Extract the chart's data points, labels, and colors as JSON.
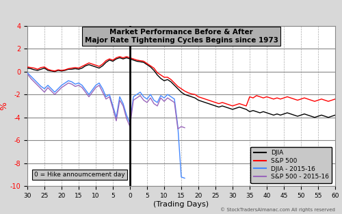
{
  "title_line1": "Market Performance Before & After",
  "title_line2": "Major Rate Tightening Cycles Begins since 1973",
  "xlabel": "(Trading Days)",
  "ylabel": "%",
  "xlim": [
    -30,
    60
  ],
  "ylim": [
    -10,
    4
  ],
  "yticks": [
    -10,
    -8,
    -6,
    -4,
    -2,
    0,
    2,
    4
  ],
  "xticks": [
    -30,
    -25,
    -20,
    -15,
    -10,
    -5,
    0,
    5,
    10,
    15,
    20,
    25,
    30,
    35,
    40,
    45,
    50,
    55,
    60
  ],
  "xticklabels": [
    "30",
    "25",
    "20",
    "15",
    "10",
    "5",
    "0",
    "5",
    "10",
    "15",
    "20",
    "25",
    "30",
    "35",
    "40",
    "45",
    "50",
    "55",
    "60"
  ],
  "vline_x": 0,
  "annotation": "0 = Hike annoumcement day",
  "copyright": "© StockTradersAlmanac.com All rights reserved",
  "background_color": "#d8d8d8",
  "plot_bg_color": "#ffffff",
  "grid_color_h": "#888888",
  "grid_color_v": "#aaaaaa",
  "title_box_color": "#b0b0b0",
  "legend_box_color": "#c8c8c8",
  "annot_box_color": "#c8c8c8",
  "djia_x": [
    -30,
    -29,
    -28,
    -27,
    -26,
    -25,
    -24,
    -23,
    -22,
    -21,
    -20,
    -19,
    -18,
    -17,
    -16,
    -15,
    -14,
    -13,
    -12,
    -11,
    -10,
    -9,
    -8,
    -7,
    -6,
    -5,
    -4,
    -3,
    -2,
    -1,
    0,
    1,
    2,
    3,
    4,
    5,
    6,
    7,
    8,
    9,
    10,
    11,
    12,
    13,
    14,
    15,
    16,
    17,
    18,
    19,
    20,
    21,
    22,
    23,
    24,
    25,
    26,
    27,
    28,
    29,
    30,
    31,
    32,
    33,
    34,
    35,
    36,
    37,
    38,
    39,
    40,
    41,
    42,
    43,
    44,
    45,
    46,
    47,
    48,
    49,
    50,
    51,
    52,
    53,
    54,
    55,
    56,
    57,
    58,
    59,
    60
  ],
  "djia_y": [
    0.3,
    0.25,
    0.15,
    0.1,
    0.2,
    0.3,
    0.1,
    0.05,
    0.0,
    0.1,
    0.05,
    0.1,
    0.2,
    0.2,
    0.25,
    0.2,
    0.3,
    0.5,
    0.6,
    0.5,
    0.4,
    0.3,
    0.5,
    0.8,
    1.0,
    0.9,
    1.1,
    1.2,
    1.1,
    1.2,
    1.1,
    1.0,
    0.9,
    0.85,
    0.8,
    0.6,
    0.4,
    0.1,
    -0.3,
    -0.6,
    -0.8,
    -0.7,
    -0.9,
    -1.2,
    -1.5,
    -1.8,
    -2.0,
    -2.1,
    -2.2,
    -2.3,
    -2.5,
    -2.6,
    -2.7,
    -2.8,
    -2.9,
    -3.0,
    -3.1,
    -3.0,
    -3.1,
    -3.2,
    -3.3,
    -3.2,
    -3.1,
    -3.2,
    -3.3,
    -3.5,
    -3.4,
    -3.5,
    -3.6,
    -3.5,
    -3.6,
    -3.7,
    -3.8,
    -3.7,
    -3.8,
    -3.7,
    -3.6,
    -3.7,
    -3.8,
    -3.9,
    -3.8,
    -3.7,
    -3.8,
    -3.9,
    -4.0,
    -3.9,
    -3.8,
    -3.9,
    -4.0,
    -3.9,
    -3.8
  ],
  "sp500_x": [
    -30,
    -29,
    -28,
    -27,
    -26,
    -25,
    -24,
    -23,
    -22,
    -21,
    -20,
    -19,
    -18,
    -17,
    -16,
    -15,
    -14,
    -13,
    -12,
    -11,
    -10,
    -9,
    -8,
    -7,
    -6,
    -5,
    -4,
    -3,
    -2,
    -1,
    0,
    1,
    2,
    3,
    4,
    5,
    6,
    7,
    8,
    9,
    10,
    11,
    12,
    13,
    14,
    15,
    16,
    17,
    18,
    19,
    20,
    21,
    22,
    23,
    24,
    25,
    26,
    27,
    28,
    29,
    30,
    31,
    32,
    33,
    34,
    35,
    36,
    37,
    38,
    39,
    40,
    41,
    42,
    43,
    44,
    45,
    46,
    47,
    48,
    49,
    50,
    51,
    52,
    53,
    54,
    55,
    56,
    57,
    58,
    59,
    60
  ],
  "sp500_y": [
    0.4,
    0.35,
    0.3,
    0.2,
    0.35,
    0.4,
    0.2,
    0.1,
    0.05,
    0.15,
    0.1,
    0.15,
    0.25,
    0.3,
    0.35,
    0.3,
    0.45,
    0.6,
    0.75,
    0.65,
    0.55,
    0.45,
    0.65,
    0.95,
    1.1,
    1.0,
    1.2,
    1.3,
    1.2,
    1.3,
    1.2,
    1.1,
    1.0,
    0.95,
    0.9,
    0.7,
    0.5,
    0.3,
    -0.1,
    -0.3,
    -0.5,
    -0.5,
    -0.7,
    -1.0,
    -1.3,
    -1.5,
    -1.7,
    -1.85,
    -1.95,
    -2.0,
    -2.2,
    -2.3,
    -2.4,
    -2.5,
    -2.6,
    -2.7,
    -2.8,
    -2.7,
    -2.8,
    -2.9,
    -3.0,
    -2.9,
    -2.8,
    -2.9,
    -3.0,
    -2.2,
    -2.3,
    -2.1,
    -2.2,
    -2.3,
    -2.2,
    -2.3,
    -2.4,
    -2.3,
    -2.4,
    -2.3,
    -2.2,
    -2.3,
    -2.4,
    -2.5,
    -2.4,
    -2.3,
    -2.4,
    -2.5,
    -2.6,
    -2.5,
    -2.4,
    -2.5,
    -2.6,
    -2.5,
    -2.4
  ],
  "djia1516_x": [
    -30,
    -29,
    -28,
    -27,
    -26,
    -25,
    -24,
    -23,
    -22,
    -21,
    -20,
    -19,
    -18,
    -17,
    -16,
    -15,
    -14,
    -13,
    -12,
    -11,
    -10,
    -9,
    -8,
    -7,
    -6,
    -5,
    -4,
    -3,
    -2,
    -1,
    0,
    1,
    2,
    3,
    4,
    5,
    6,
    7,
    8,
    9,
    10,
    11,
    12,
    13,
    14,
    15,
    16
  ],
  "djia1516_y": [
    -0.1,
    -0.4,
    -0.7,
    -1.0,
    -1.3,
    -1.5,
    -1.2,
    -1.5,
    -1.8,
    -1.5,
    -1.2,
    -1.0,
    -0.8,
    -0.9,
    -1.1,
    -1.0,
    -1.2,
    -1.6,
    -2.0,
    -1.6,
    -1.2,
    -1.0,
    -1.5,
    -2.2,
    -2.0,
    -3.0,
    -4.0,
    -2.2,
    -2.8,
    -3.8,
    -4.5,
    -2.2,
    -2.0,
    -1.8,
    -2.2,
    -2.4,
    -2.0,
    -2.5,
    -2.7,
    -2.1,
    -2.3,
    -2.0,
    -2.2,
    -2.4,
    -4.8,
    -9.2,
    -9.3
  ],
  "sp5001516_x": [
    -30,
    -29,
    -28,
    -27,
    -26,
    -25,
    -24,
    -23,
    -22,
    -21,
    -20,
    -19,
    -18,
    -17,
    -16,
    -15,
    -14,
    -13,
    -12,
    -11,
    -10,
    -9,
    -8,
    -7,
    -6,
    -5,
    -4,
    -3,
    -2,
    -1,
    0,
    1,
    2,
    3,
    4,
    5,
    6,
    7,
    8,
    9,
    10,
    11,
    12,
    13,
    14,
    15,
    16
  ],
  "sp5001516_y": [
    -0.2,
    -0.6,
    -0.9,
    -1.2,
    -1.5,
    -1.8,
    -1.4,
    -1.7,
    -2.0,
    -1.7,
    -1.4,
    -1.2,
    -1.0,
    -1.1,
    -1.3,
    -1.2,
    -1.4,
    -1.8,
    -2.2,
    -1.8,
    -1.4,
    -1.2,
    -1.8,
    -2.4,
    -2.2,
    -3.2,
    -4.3,
    -2.5,
    -3.0,
    -4.1,
    -4.8,
    -2.5,
    -2.3,
    -2.1,
    -2.5,
    -2.7,
    -2.3,
    -2.8,
    -3.0,
    -2.3,
    -2.6,
    -2.3,
    -2.5,
    -2.7,
    -5.0,
    -4.8,
    -4.9
  ],
  "djia_color": "#000000",
  "sp500_color": "#ff0000",
  "djia1516_color": "#4488ff",
  "sp5001516_color": "#9966bb",
  "vline_color": "#000000",
  "legend_labels": [
    "DJIA",
    "S&P 500",
    "DJIA - 2015-16",
    "S&P 500 - 2015-16"
  ],
  "legend_colors": [
    "#000000",
    "#ff0000",
    "#4488ff",
    "#9966bb"
  ]
}
